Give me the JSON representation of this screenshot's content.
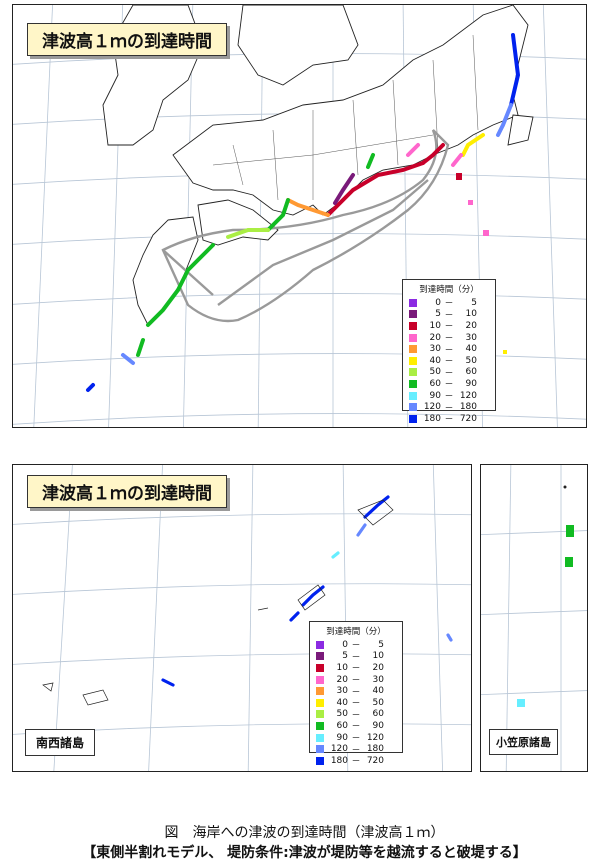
{
  "map_title": "津波高１ｍの到達時間",
  "legend": {
    "header": "到達時間（分）",
    "items": [
      {
        "lo": "0",
        "hi": "5",
        "color": "#8b2be2"
      },
      {
        "lo": "5",
        "hi": "10",
        "color": "#7a1a7a"
      },
      {
        "lo": "10",
        "hi": "20",
        "color": "#c8002a"
      },
      {
        "lo": "20",
        "hi": "30",
        "color": "#ff66cc"
      },
      {
        "lo": "30",
        "hi": "40",
        "color": "#ff9933"
      },
      {
        "lo": "40",
        "hi": "50",
        "color": "#ffee00"
      },
      {
        "lo": "50",
        "hi": "60",
        "color": "#aaee44"
      },
      {
        "lo": "60",
        "hi": "90",
        "color": "#11bb22"
      },
      {
        "lo": "90",
        "hi": "120",
        "color": "#66eeff"
      },
      {
        "lo": "120",
        "hi": "180",
        "color": "#6688ff"
      },
      {
        "lo": "180",
        "hi": "720",
        "color": "#0022ee"
      }
    ],
    "dash": "－"
  },
  "region_nansei": "南西諸島",
  "region_ogasawara": "小笠原諸島",
  "caption": {
    "line1": "図　海岸への津波の到達時間（津波高１ｍ）",
    "line2": "【東側半割れモデル、 堤防条件:津波が堤防等を越流すると破堤する】"
  }
}
